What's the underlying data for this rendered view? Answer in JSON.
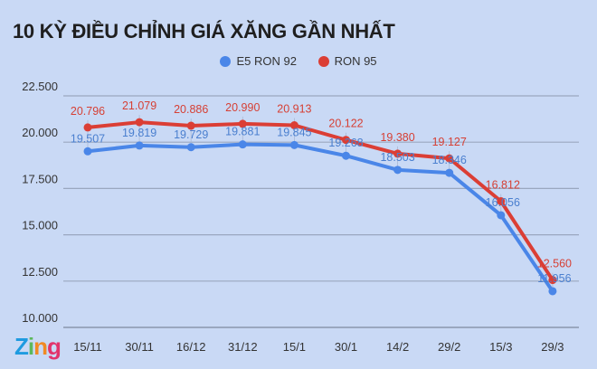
{
  "chart_data": {
    "type": "line",
    "title": "10 KỲ ĐIỀU CHỈNH GIÁ XĂNG GẦN NHẤT",
    "categories": [
      "15/11",
      "30/11",
      "16/12",
      "31/12",
      "15/1",
      "30/1",
      "14/2",
      "29/2",
      "15/3",
      "29/3"
    ],
    "series": [
      {
        "name": "E5 RON 92",
        "color": "#4a86e8",
        "values": [
          19507,
          19819,
          19729,
          19881,
          19845,
          19268,
          18503,
          18346,
          16056,
          11956
        ],
        "labels": [
          "19.507",
          "19.819",
          "19.729",
          "19.881",
          "19.845",
          "19.268",
          "18.503",
          "18.346",
          "16.056",
          "11.956"
        ]
      },
      {
        "name": "RON 95",
        "color": "#db3e35",
        "values": [
          20796,
          21079,
          20886,
          20990,
          20913,
          20122,
          19380,
          19127,
          16812,
          12560
        ],
        "labels": [
          "20.796",
          "21.079",
          "20.886",
          "20.990",
          "20.913",
          "20.122",
          "19.380",
          "19.127",
          "16.812",
          "12.560"
        ]
      }
    ],
    "ylim": [
      10000,
      22500
    ],
    "yticks": [
      10000,
      12500,
      15000,
      17500,
      20000,
      22500
    ],
    "ytick_labels": [
      "10.000",
      "12.500",
      "15.000",
      "17.500",
      "20.000",
      "22.500"
    ],
    "grid": true,
    "legend": "top-center"
  },
  "logo": {
    "text": "Zing",
    "letters": [
      "Z",
      "i",
      "n",
      "g"
    ],
    "colors": [
      "#1e9be0",
      "#5cb85c",
      "#f08a24",
      "#e2336b"
    ]
  }
}
